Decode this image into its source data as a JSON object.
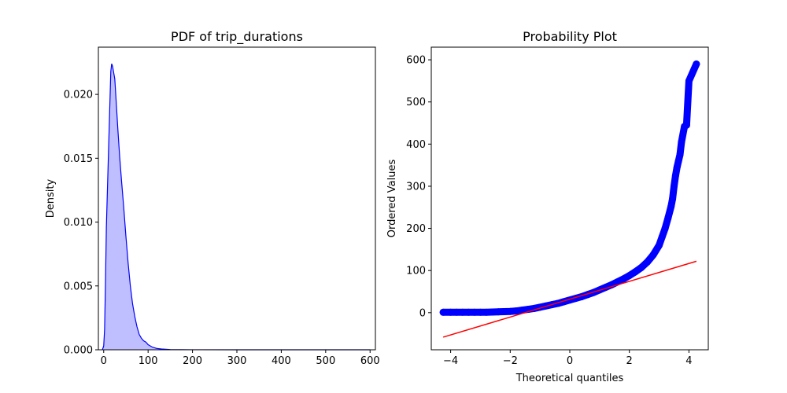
{
  "chart_data": [
    {
      "type": "area",
      "title": "PDF of trip_durations",
      "xlabel": "",
      "ylabel": "Density",
      "xlim": [
        -12,
        612
      ],
      "ylim": [
        0,
        0.0237
      ],
      "xticks": [
        0,
        100,
        200,
        300,
        400,
        500,
        600
      ],
      "yticks": [
        0.0,
        0.005,
        0.01,
        0.015,
        0.02
      ],
      "ytick_labels": [
        "0.000",
        "0.005",
        "0.010",
        "0.015",
        "0.020"
      ],
      "line_color": "#0000ff",
      "fill_color": "#8080ff",
      "fill_alpha": 0.5,
      "grid": false,
      "x": [
        -3,
        0,
        2,
        4,
        6,
        10,
        14,
        16,
        18,
        20,
        22,
        25,
        28,
        32,
        36,
        40,
        45,
        50,
        55,
        60,
        65,
        70,
        75,
        80,
        85,
        90,
        95,
        100,
        105,
        110,
        115,
        120,
        130,
        140,
        150,
        175,
        200,
        300,
        400,
        500,
        600
      ],
      "y": [
        0,
        0.0003,
        0.0016,
        0.0052,
        0.0096,
        0.0145,
        0.0194,
        0.0218,
        0.0224,
        0.0222,
        0.0218,
        0.0212,
        0.0195,
        0.0172,
        0.0151,
        0.0133,
        0.0112,
        0.0089,
        0.0068,
        0.005,
        0.0036,
        0.0026,
        0.0018,
        0.0012,
        0.0009,
        0.0007,
        0.0006,
        0.0004,
        0.0003,
        0.0002,
        0.00015,
        0.0001,
        6e-05,
        4e-05,
        2e-05,
        1e-05,
        5e-06,
        2e-06,
        1e-06,
        5e-07,
        0
      ]
    },
    {
      "type": "scatter",
      "title": "Probability Plot",
      "xlabel": "Theoretical quantiles",
      "ylabel": "Ordered Values",
      "xlim": [
        -4.65,
        4.65
      ],
      "ylim": [
        -88,
        630
      ],
      "xticks": [
        -4,
        -2,
        0,
        2,
        4
      ],
      "xtick_labels": [
        "−4",
        "−2",
        "0",
        "2",
        "4"
      ],
      "yticks": [
        0,
        100,
        200,
        300,
        400,
        500,
        600
      ],
      "grid": false,
      "point_color": "#0000ff",
      "line_color": "#ff0000",
      "points": {
        "x": [
          -4.25,
          -4.0,
          -3.8,
          -3.6,
          -3.4,
          -3.2,
          -3.0,
          -2.8,
          -2.6,
          -2.4,
          -2.2,
          -2.0,
          -1.8,
          -1.6,
          -1.4,
          -1.2,
          -1.0,
          -0.8,
          -0.6,
          -0.4,
          -0.2,
          0.0,
          0.2,
          0.4,
          0.6,
          0.8,
          1.0,
          1.2,
          1.4,
          1.6,
          1.8,
          2.0,
          2.2,
          2.4,
          2.6,
          2.8,
          3.0,
          3.1,
          3.2,
          3.3,
          3.4,
          3.45,
          3.5,
          3.55,
          3.6,
          3.65,
          3.7,
          3.75,
          3.85,
          3.92,
          4.0,
          4.25
        ],
        "y": [
          1,
          1,
          1,
          1,
          1,
          1,
          1,
          1,
          1.5,
          2,
          2.5,
          3,
          4,
          6,
          8,
          10,
          13,
          16,
          19,
          22,
          26,
          30,
          34,
          38,
          43,
          48,
          54,
          60,
          66,
          73,
          80,
          88,
          97,
          107,
          120,
          137,
          160,
          180,
          200,
          225,
          252,
          270,
          300,
          325,
          345,
          360,
          375,
          405,
          442,
          445,
          550,
          590
        ]
      },
      "fit_line": {
        "x": [
          -4.25,
          4.25
        ],
        "y": [
          -58,
          122
        ]
      }
    }
  ]
}
